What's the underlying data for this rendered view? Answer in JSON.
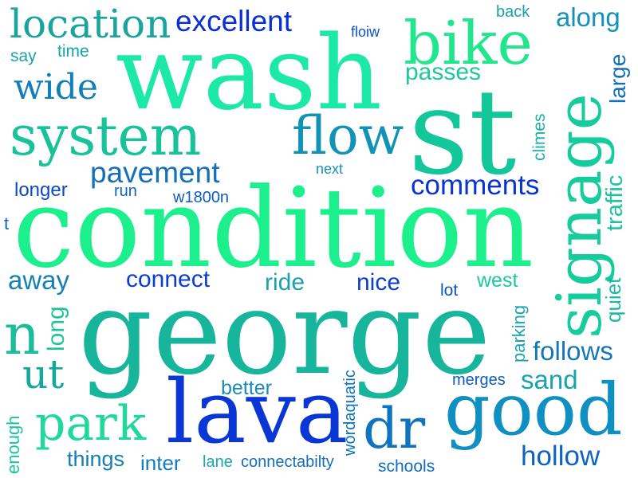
{
  "words": [
    {
      "id": "wash",
      "text": "wash",
      "color": "#1de9a6"
    },
    {
      "id": "st",
      "text": "st",
      "color": "#14c79a"
    },
    {
      "id": "condition",
      "text": "condition",
      "color": "#1bf08c"
    },
    {
      "id": "george",
      "text": "george",
      "color": "#16b59c"
    },
    {
      "id": "signage",
      "text": "signage",
      "color": "#16cb9c"
    },
    {
      "id": "lava",
      "text": "lava",
      "color": "#0a36d6"
    },
    {
      "id": "good",
      "text": "good",
      "color": "#0f8fc2"
    },
    {
      "id": "system",
      "text": "system",
      "color": "#19c39a"
    },
    {
      "id": "location",
      "text": "location",
      "color": "#1aa49e"
    },
    {
      "id": "bike",
      "text": "bike",
      "color": "#22e68e"
    },
    {
      "id": "flow",
      "text": "flow",
      "color": "#1193b8"
    },
    {
      "id": "park",
      "text": "park",
      "color": "#1ed999"
    },
    {
      "id": "dr",
      "text": "dr",
      "color": "#0f74c0"
    },
    {
      "id": "n",
      "text": "n",
      "color": "#1cbc9a"
    },
    {
      "id": "ut",
      "text": "ut",
      "color": "#16a79e"
    },
    {
      "id": "wide",
      "text": "wide",
      "color": "#137fb8"
    },
    {
      "id": "excellent",
      "text": "excellent",
      "color": "#0a2fd2"
    },
    {
      "id": "pavement",
      "text": "pavement",
      "color": "#1570b8"
    },
    {
      "id": "comments",
      "text": "comments",
      "color": "#0a33d4"
    },
    {
      "id": "hollow",
      "text": "hollow",
      "color": "#0e63c2"
    },
    {
      "id": "along",
      "text": "along",
      "color": "#1590b8"
    },
    {
      "id": "passes",
      "text": "passes",
      "color": "#20c79a"
    },
    {
      "id": "away",
      "text": "away",
      "color": "#1480b4"
    },
    {
      "id": "connect",
      "text": "connect",
      "color": "#0a3ecf"
    },
    {
      "id": "ride",
      "text": "ride",
      "color": "#1aa1b0"
    },
    {
      "id": "nice",
      "text": "nice",
      "color": "#0d3fc9"
    },
    {
      "id": "sand",
      "text": "sand",
      "color": "#16a5ac"
    },
    {
      "id": "follows",
      "text": "follows",
      "color": "#1478b8"
    },
    {
      "id": "things",
      "text": "things",
      "color": "#157eb6"
    },
    {
      "id": "inter",
      "text": "inter",
      "color": "#137cba"
    },
    {
      "id": "better",
      "text": "better",
      "color": "#158bb6"
    },
    {
      "id": "long",
      "text": "long",
      "color": "#1ec49e"
    },
    {
      "id": "west",
      "text": "west",
      "color": "#1cc89c"
    },
    {
      "id": "longer",
      "text": "longer",
      "color": "#0d48c4"
    },
    {
      "id": "run",
      "text": "run",
      "color": "#0e63c2"
    },
    {
      "id": "w1800n",
      "text": "w1800n",
      "color": "#0d5cc0"
    },
    {
      "id": "say",
      "text": "say",
      "color": "#1aa0ae"
    },
    {
      "id": "time",
      "text": "time",
      "color": "#16a3a8"
    },
    {
      "id": "floiw",
      "text": "floiw",
      "color": "#0d52c4"
    },
    {
      "id": "back",
      "text": "back",
      "color": "#1aa0ae"
    },
    {
      "id": "next",
      "text": "next",
      "color": "#1a8fb4"
    },
    {
      "id": "t",
      "text": "t",
      "color": "#0e68c0"
    },
    {
      "id": "lot",
      "text": "lot",
      "color": "#0d56c4"
    },
    {
      "id": "merges",
      "text": "merges",
      "color": "#0e5cc2"
    },
    {
      "id": "lane",
      "text": "lane",
      "color": "#1aa8ae"
    },
    {
      "id": "connectabilty",
      "text": "connectabilty",
      "color": "#1570b8"
    },
    {
      "id": "schools",
      "text": "schools",
      "color": "#0e6ec0"
    },
    {
      "id": "large",
      "text": "large",
      "color": "#1170b8"
    },
    {
      "id": "climes",
      "text": "climes",
      "color": "#1bb0a8"
    },
    {
      "id": "traffic",
      "text": "traffic",
      "color": "#1cc49e"
    },
    {
      "id": "quiet",
      "text": "quiet",
      "color": "#1bb6a4"
    },
    {
      "id": "parking",
      "text": "parking",
      "color": "#1ba4ae"
    },
    {
      "id": "wordaquatic",
      "text": "wordaquatic",
      "color": "#0e74bc"
    },
    {
      "id": "enough",
      "text": "enough",
      "color": "#1cc49e"
    }
  ]
}
